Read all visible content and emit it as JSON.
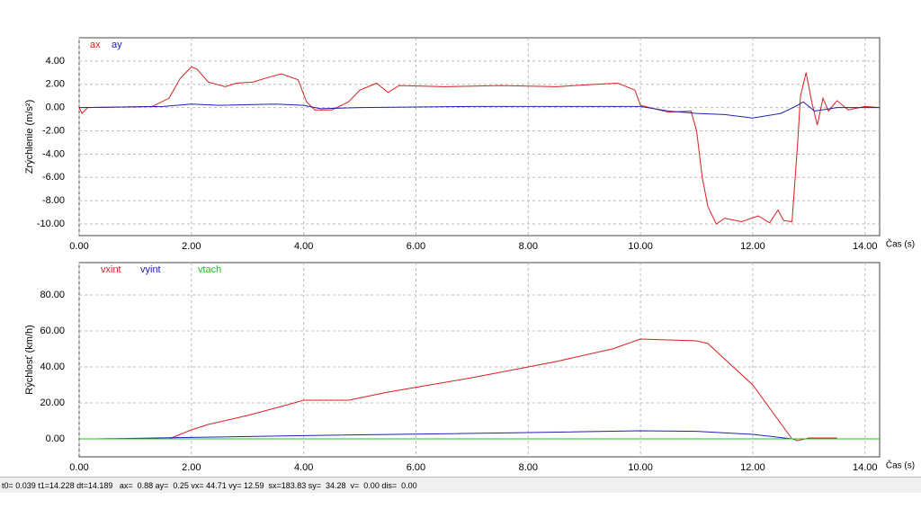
{
  "chart_data": [
    {
      "type": "line",
      "ylabel": "Zrýchlenie  (m/s²)",
      "xlabel": "Čas (s)",
      "grid": true,
      "xlim": [
        0,
        14.26
      ],
      "ylim": [
        -11,
        6
      ],
      "xticks": [
        {
          "value": 0,
          "label": "0.00"
        },
        {
          "value": 2,
          "label": "2.00"
        },
        {
          "value": 4,
          "label": "4.00"
        },
        {
          "value": 6,
          "label": "6.00"
        },
        {
          "value": 8,
          "label": "8.00"
        },
        {
          "value": 10,
          "label": "10.00"
        },
        {
          "value": 12,
          "label": "12.00"
        },
        {
          "value": 14,
          "label": "14.00"
        }
      ],
      "yticks": [
        {
          "value": 4,
          "label": "4.00"
        },
        {
          "value": 2,
          "label": "2.00"
        },
        {
          "value": 0,
          "label": "0.00"
        },
        {
          "value": -2,
          "label": "-2.00"
        },
        {
          "value": -4,
          "label": "-4.00"
        },
        {
          "value": -6,
          "label": "-6.00"
        },
        {
          "value": -8,
          "label": "-8.00"
        },
        {
          "value": -10,
          "label": "-10.00"
        }
      ],
      "series": [
        {
          "name": "ax",
          "color": "#d62020",
          "x": [
            0,
            0.05,
            0.15,
            1.3,
            1.6,
            1.8,
            2.0,
            2.1,
            2.3,
            2.6,
            2.8,
            3.1,
            3.3,
            3.6,
            3.9,
            4.05,
            4.2,
            4.5,
            4.8,
            5.0,
            5.3,
            5.5,
            5.7,
            6.5,
            7.5,
            8.5,
            9.2,
            9.6,
            9.9,
            10.0,
            10.5,
            10.9,
            11.0,
            11.1,
            11.2,
            11.35,
            11.5,
            11.8,
            12.1,
            12.3,
            12.45,
            12.55,
            12.7,
            12.8,
            12.85,
            12.95,
            13.05,
            13.15,
            13.25,
            13.35,
            13.5,
            13.7,
            14.0,
            14.26
          ],
          "values": [
            0,
            -0.5,
            0,
            0.1,
            0.8,
            2.5,
            3.5,
            3.3,
            2.2,
            1.8,
            2.1,
            2.2,
            2.5,
            2.9,
            2.4,
            0.5,
            -0.2,
            -0.2,
            0.5,
            1.5,
            2.1,
            1.3,
            1.9,
            1.8,
            1.9,
            1.8,
            2.0,
            2.1,
            1.5,
            0.2,
            -0.4,
            -0.3,
            -2,
            -6,
            -8.5,
            -10,
            -9.5,
            -9.8,
            -9.3,
            -9.9,
            -8.8,
            -9.7,
            -9.8,
            -3,
            1,
            3.0,
            0.5,
            -1.5,
            0.8,
            -0.3,
            0.6,
            -0.2,
            0.1,
            0
          ]
        },
        {
          "name": "ay",
          "color": "#2020b0",
          "x": [
            0,
            1.5,
            2.0,
            2.5,
            3.5,
            4.0,
            4.3,
            5.0,
            7.0,
            9.0,
            10.0,
            10.5,
            11.0,
            11.5,
            12.0,
            12.5,
            12.8,
            12.9,
            13.1,
            13.5,
            14.26
          ],
          "values": [
            0,
            0.1,
            0.3,
            0.2,
            0.3,
            0.2,
            -0.1,
            0,
            0.1,
            0.1,
            0.1,
            -0.3,
            -0.5,
            -0.6,
            -0.9,
            -0.5,
            0.2,
            0.5,
            -0.3,
            0,
            0
          ]
        }
      ]
    },
    {
      "type": "line",
      "ylabel": "Rýchlosť (km/h)",
      "xlabel": "Čas (s)",
      "grid": true,
      "xlim": [
        0,
        14.26
      ],
      "ylim": [
        -10,
        98
      ],
      "xticks": [
        {
          "value": 0,
          "label": "0.00"
        },
        {
          "value": 2,
          "label": "2.00"
        },
        {
          "value": 4,
          "label": "4.00"
        },
        {
          "value": 6,
          "label": "6.00"
        },
        {
          "value": 8,
          "label": "8.00"
        },
        {
          "value": 10,
          "label": "10.00"
        },
        {
          "value": 12,
          "label": "12.00"
        },
        {
          "value": 14,
          "label": "14.00"
        }
      ],
      "yticks": [
        {
          "value": 80,
          "label": "80.00"
        },
        {
          "value": 60,
          "label": "60.00"
        },
        {
          "value": 40,
          "label": "40.00"
        },
        {
          "value": 20,
          "label": "20.00"
        },
        {
          "value": 0,
          "label": "0.00"
        }
      ],
      "series": [
        {
          "name": "vxint",
          "color": "#d62020",
          "x": [
            0.3,
            1.6,
            2.0,
            2.3,
            3.0,
            3.6,
            4.0,
            4.3,
            4.8,
            5.5,
            7.0,
            8.5,
            9.5,
            10.0,
            10.5,
            11.0,
            11.2,
            12.0,
            12.7,
            12.8,
            13.0,
            13.5
          ],
          "values": [
            0,
            0,
            5,
            8,
            13,
            18,
            21.5,
            21.5,
            21.5,
            26,
            34,
            43,
            50,
            55.5,
            55,
            54.5,
            53,
            30,
            0,
            -1,
            0.5,
            0.5
          ]
        },
        {
          "name": "vyint",
          "color": "#2020b0",
          "x": [
            0.3,
            2.0,
            4.0,
            8.0,
            10.0,
            11.0,
            12.0,
            12.7,
            13.5
          ],
          "values": [
            0,
            0.8,
            1.8,
            3.5,
            4.5,
            4.2,
            2.5,
            0,
            0
          ]
        },
        {
          "name": "vtach",
          "color": "#20c020",
          "x": [
            0,
            14.26
          ],
          "values": [
            0,
            0
          ]
        }
      ]
    }
  ],
  "status_bar": "t0= 0.039 t1=14.228 dt=14.189   ax=  0.88 ay=  0.25 vx= 44.71 vy= 12.59  sx=183.83 sy=  34.28  v=  0.00 dis=  0.00"
}
